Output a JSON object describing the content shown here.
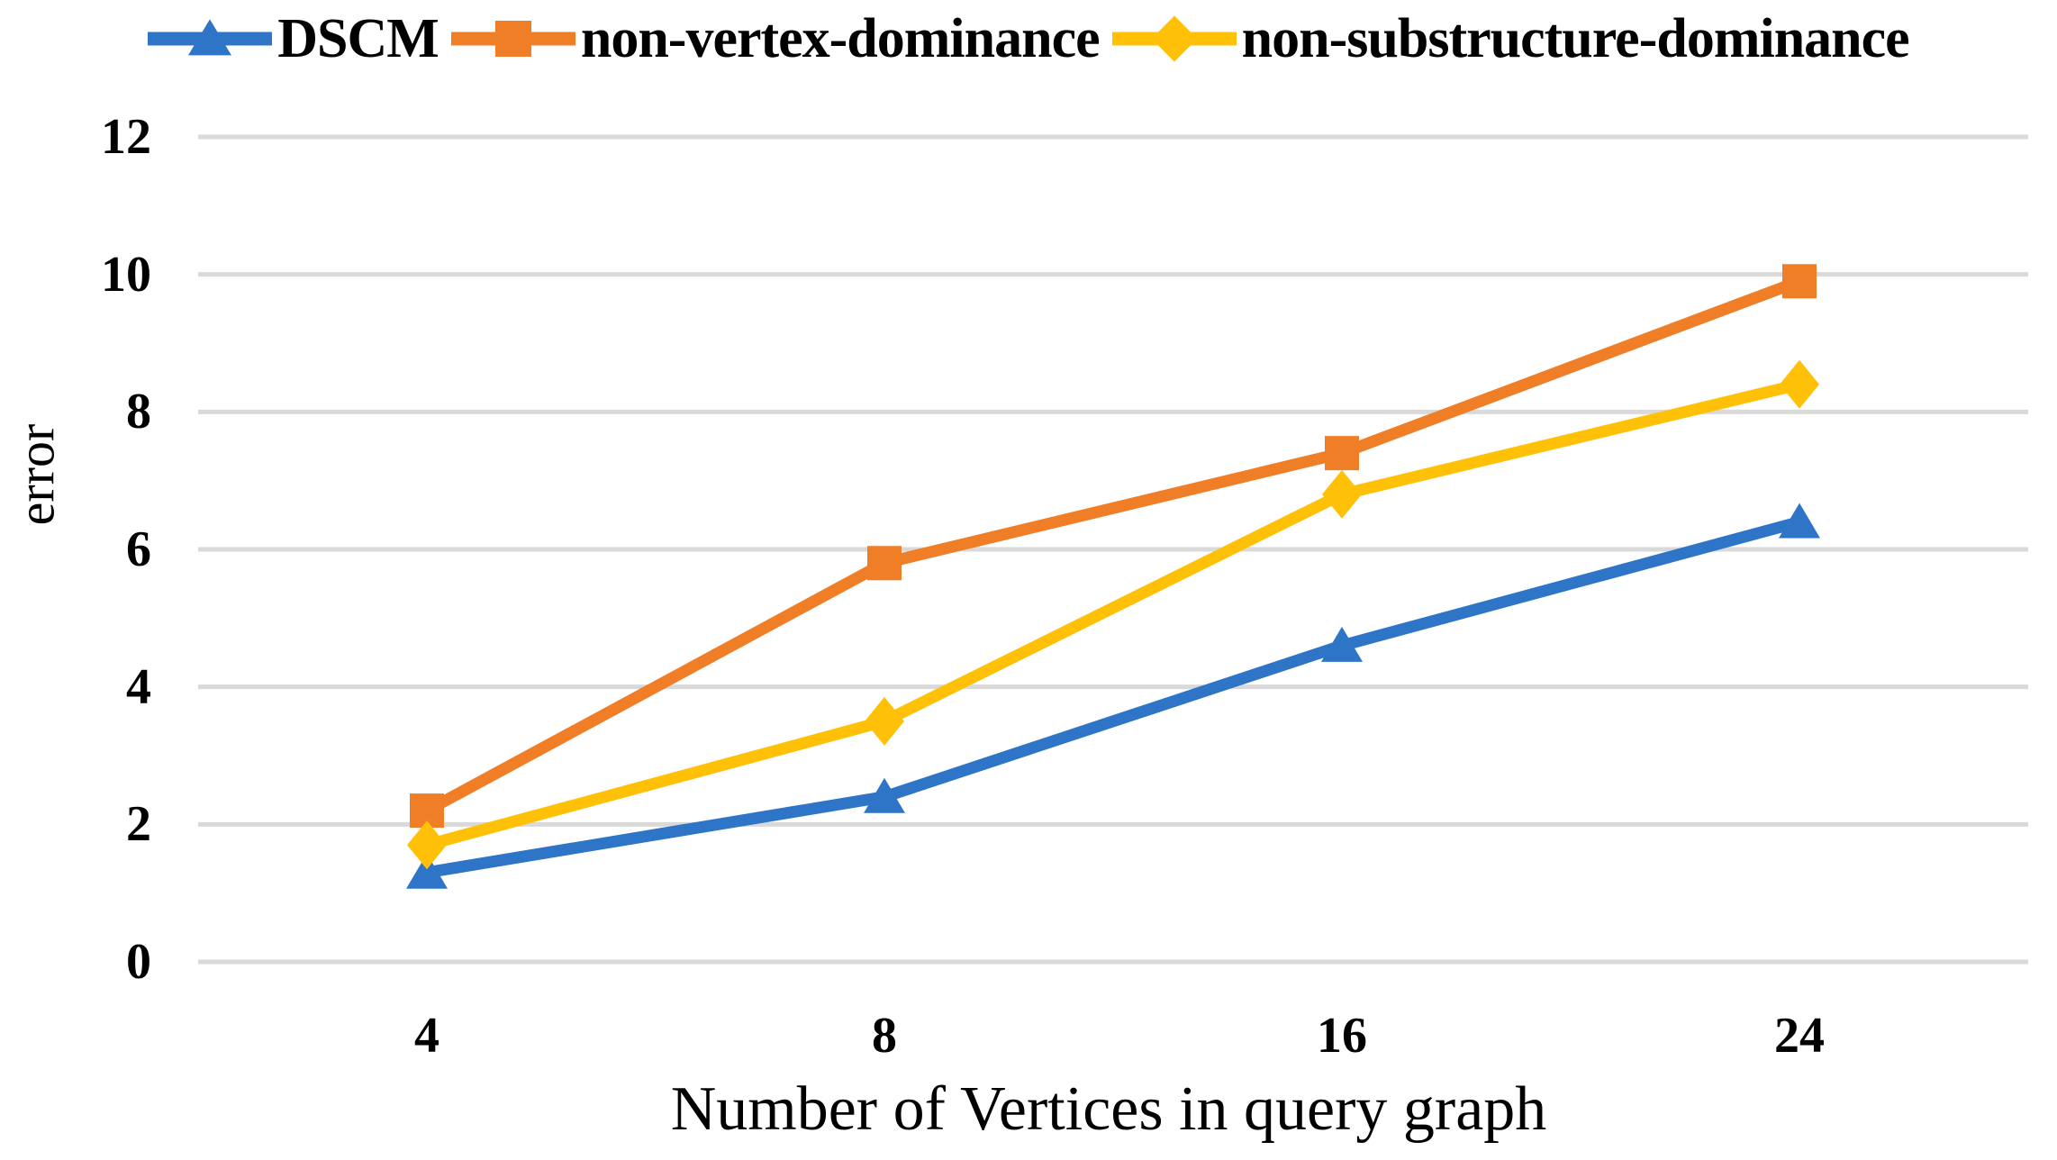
{
  "chart_data": {
    "type": "line",
    "title": "",
    "xlabel": "Number of Vertices in query graph",
    "ylabel": "error",
    "categories": [
      "4",
      "8",
      "16",
      "24"
    ],
    "yticks": [
      0,
      2,
      4,
      6,
      8,
      10,
      12
    ],
    "ylim": [
      0,
      12
    ],
    "grid": "horizontal-only",
    "gridline_color": "#D9D9D9",
    "background_color": "#FFFFFF",
    "text_color": "#000000",
    "legend_position": "top-center",
    "series": [
      {
        "name": "DSCM",
        "color": "#2E75C8",
        "marker": "triangle",
        "values": [
          1.3,
          2.4,
          4.6,
          6.4
        ]
      },
      {
        "name": "non-vertex-dominance",
        "color": "#F07E27",
        "marker": "square",
        "values": [
          2.2,
          5.8,
          7.4,
          9.9
        ]
      },
      {
        "name": "non-substructure-dominance",
        "color": "#FFC107",
        "marker": "diamond",
        "values": [
          1.7,
          3.5,
          6.8,
          8.4
        ]
      }
    ]
  }
}
